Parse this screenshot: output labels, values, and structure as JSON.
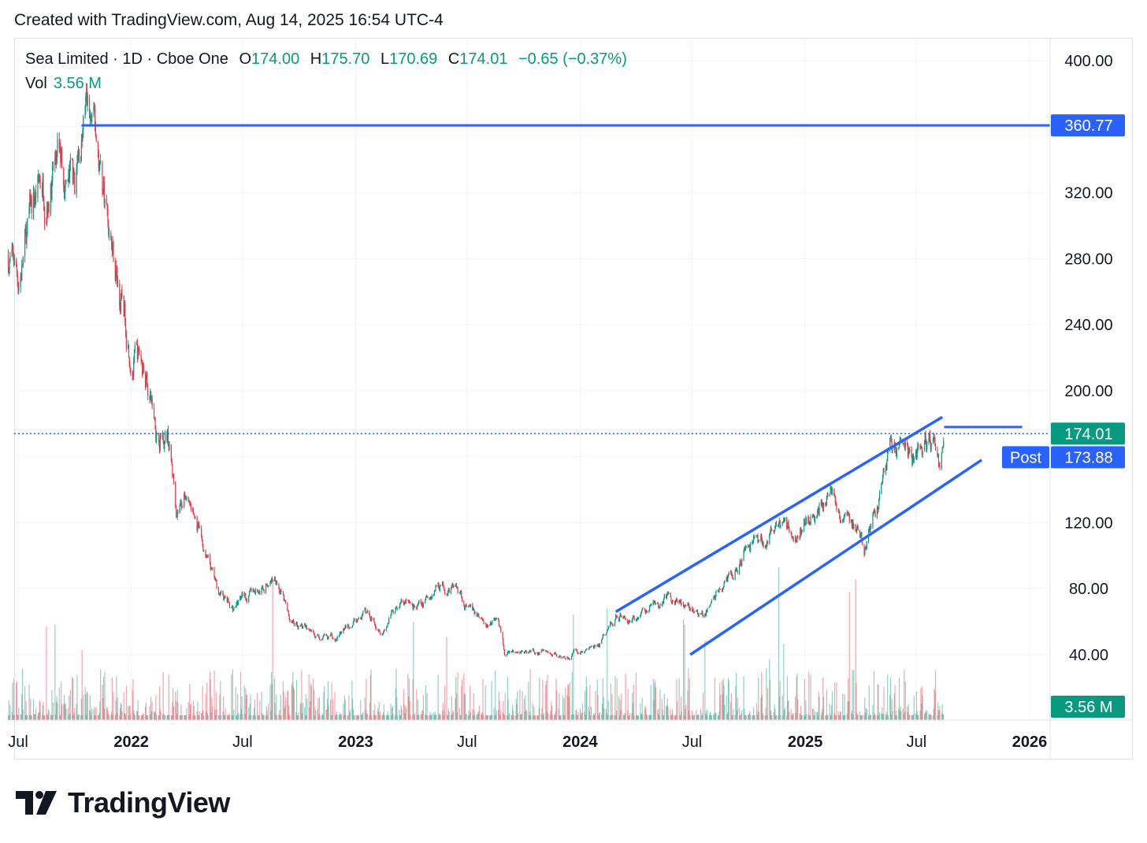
{
  "header": {
    "created_text": "Created with TradingView.com, Aug 14, 2025 16:54 UTC-4"
  },
  "legend": {
    "symbol": "Sea Limited · 1D · Cboe One",
    "open_label": "O",
    "open": "174.00",
    "high_label": "H",
    "high": "175.70",
    "low_label": "L",
    "low": "170.69",
    "close_label": "C",
    "close": "174.01",
    "change": "−0.65 (−0.37%)",
    "vol_label": "Vol",
    "vol": "3.56 M"
  },
  "brand": {
    "name": "TradingView"
  },
  "colors": {
    "up": "#089981",
    "down": "#f23645",
    "drawing": "#2962ff",
    "grid": "#f0f3fa",
    "text": "#131722"
  },
  "chart_data": {
    "type": "candlestick",
    "ylim": [
      20,
      412
    ],
    "yticks": [
      "400.00",
      "320.00",
      "280.00",
      "240.00",
      "200.00",
      "120.00",
      "80.00",
      "40.00"
    ],
    "xticks": [
      "Jul",
      "2022",
      "Jul",
      "2023",
      "Jul",
      "2024",
      "Jul",
      "2025",
      "Jul",
      "2026"
    ],
    "price_path": [
      [
        "2021-06-15",
        282
      ],
      [
        "2021-07-01",
        268
      ],
      [
        "2021-08-01",
        320
      ],
      [
        "2021-09-01",
        340
      ],
      [
        "2021-10-01",
        318
      ],
      [
        "2021-10-19",
        368
      ],
      [
        "2021-11-10",
        340
      ],
      [
        "2021-12-01",
        290
      ],
      [
        "2021-12-15",
        255
      ],
      [
        "2022-01-05",
        225
      ],
      [
        "2022-01-25",
        210
      ],
      [
        "2022-02-10",
        180
      ],
      [
        "2022-03-01",
        178
      ],
      [
        "2022-03-15",
        130
      ],
      [
        "2022-04-01",
        140
      ],
      [
        "2022-05-01",
        100
      ],
      [
        "2022-05-20",
        78
      ],
      [
        "2022-06-15",
        68
      ],
      [
        "2022-07-01",
        75
      ],
      [
        "2022-08-01",
        80
      ],
      [
        "2022-08-25",
        90
      ],
      [
        "2022-09-15",
        60
      ],
      [
        "2022-10-01",
        58
      ],
      [
        "2022-11-15",
        48
      ],
      [
        "2022-12-15",
        55
      ],
      [
        "2023-01-15",
        65
      ],
      [
        "2023-02-15",
        58
      ],
      [
        "2023-03-15",
        72
      ],
      [
        "2023-04-20",
        68
      ],
      [
        "2023-05-15",
        85
      ],
      [
        "2023-06-20",
        80
      ],
      [
        "2023-07-01",
        68
      ],
      [
        "2023-08-01",
        58
      ],
      [
        "2023-08-20",
        62
      ],
      [
        "2023-09-01",
        40
      ],
      [
        "2023-10-15",
        43
      ],
      [
        "2023-11-10",
        40
      ],
      [
        "2024-01-01",
        42
      ],
      [
        "2024-02-01",
        45
      ],
      [
        "2024-03-01",
        65
      ],
      [
        "2024-04-01",
        62
      ],
      [
        "2024-05-01",
        70
      ],
      [
        "2024-06-01",
        75
      ],
      [
        "2024-07-15",
        62
      ],
      [
        "2024-08-15",
        80
      ],
      [
        "2024-09-15",
        95
      ],
      [
        "2024-10-15",
        110
      ],
      [
        "2024-11-15",
        115
      ],
      [
        "2024-12-15",
        112
      ],
      [
        "2025-01-10",
        125
      ],
      [
        "2025-02-15",
        140
      ],
      [
        "2025-03-10",
        128
      ],
      [
        "2025-04-07",
        102
      ],
      [
        "2025-04-25",
        125
      ],
      [
        "2025-05-20",
        168
      ],
      [
        "2025-06-05",
        160
      ],
      [
        "2025-07-01",
        155
      ],
      [
        "2025-07-20",
        168
      ],
      [
        "2025-08-10",
        152
      ],
      [
        "2025-08-14",
        174
      ]
    ],
    "last_close": 174.01,
    "post_market": 173.88,
    "post_label": "Post",
    "volume_label": "3.56 M",
    "drawings": {
      "resistance_level": {
        "price": 360.77,
        "label": "360.77",
        "from": "2021-10-12"
      },
      "channel_upper": {
        "from": [
          "2024-02-28",
          66
        ],
        "to": [
          "2025-08-12",
          184
        ]
      },
      "channel_lower": {
        "from": [
          "2024-06-28",
          40
        ],
        "to": [
          "2025-10-15",
          158
        ]
      },
      "short_level": {
        "price": 178,
        "from": "2025-08-15",
        "to": "2025-12-20"
      }
    }
  }
}
